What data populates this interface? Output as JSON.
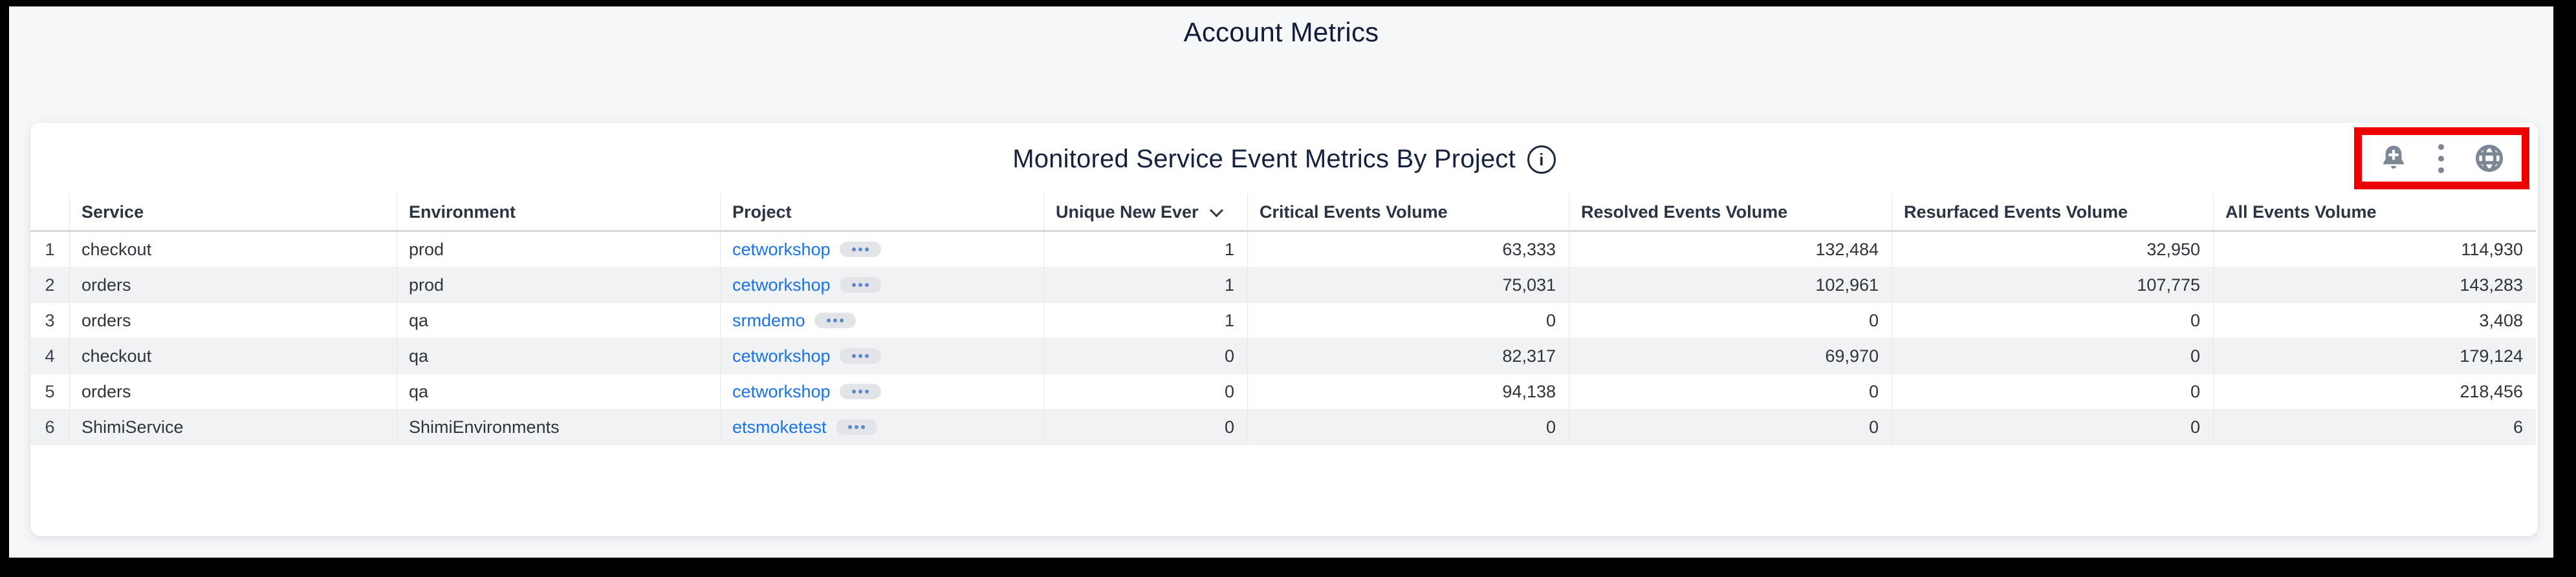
{
  "dashboard": {
    "title": "Account Metrics"
  },
  "panel": {
    "title": "Monitored Service Event Metrics By Project",
    "info_icon": "info-icon",
    "toolbar": {
      "icons": [
        "add-alert-bell-icon",
        "kebab-menu-icon",
        "globe-icon"
      ],
      "highlight_color": "#ef0000"
    }
  },
  "table": {
    "columns": [
      {
        "key": "service",
        "label": "Service",
        "align": "left"
      },
      {
        "key": "environment",
        "label": "Environment",
        "align": "left"
      },
      {
        "key": "project",
        "label": "Project",
        "align": "left",
        "type": "link"
      },
      {
        "key": "unique_new",
        "label": "Unique New Ever",
        "align": "right",
        "sort": "desc"
      },
      {
        "key": "critical",
        "label": "Critical Events Volume",
        "align": "right"
      },
      {
        "key": "resolved",
        "label": "Resolved Events Volume",
        "align": "right"
      },
      {
        "key": "resurfaced",
        "label": "Resurfaced Events Volume",
        "align": "right"
      },
      {
        "key": "all",
        "label": "All Events Volume",
        "align": "right"
      }
    ],
    "rows": [
      {
        "num": "1",
        "service": "checkout",
        "environment": "prod",
        "project": "cetworkshop",
        "unique_new": "1",
        "critical": "63,333",
        "resolved": "132,484",
        "resurfaced": "32,950",
        "all": "114,930"
      },
      {
        "num": "2",
        "service": "orders",
        "environment": "prod",
        "project": "cetworkshop",
        "unique_new": "1",
        "critical": "75,031",
        "resolved": "102,961",
        "resurfaced": "107,775",
        "all": "143,283"
      },
      {
        "num": "3",
        "service": "orders",
        "environment": "qa",
        "project": "srmdemo",
        "unique_new": "1",
        "critical": "0",
        "resolved": "0",
        "resurfaced": "0",
        "all": "3,408"
      },
      {
        "num": "4",
        "service": "checkout",
        "environment": "qa",
        "project": "cetworkshop",
        "unique_new": "0",
        "critical": "82,317",
        "resolved": "69,970",
        "resurfaced": "0",
        "all": "179,124"
      },
      {
        "num": "5",
        "service": "orders",
        "environment": "qa",
        "project": "cetworkshop",
        "unique_new": "0",
        "critical": "94,138",
        "resolved": "0",
        "resurfaced": "0",
        "all": "218,456"
      },
      {
        "num": "6",
        "service": "ShimiService",
        "environment": "ShimiEnvironments",
        "project": "etsmoketest",
        "unique_new": "0",
        "critical": "0",
        "resolved": "0",
        "resurfaced": "0",
        "all": "6"
      }
    ]
  },
  "colors": {
    "link_blue": "#1a73e8",
    "annotation_red": "#ef0000",
    "icon_slate": "#7b8795",
    "title_navy": "#101d38",
    "stripe_gray": "#f1f2f3"
  }
}
